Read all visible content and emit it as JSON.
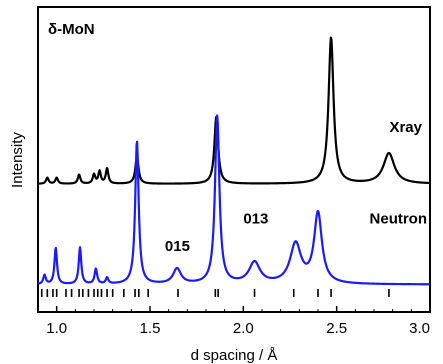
{
  "chart_data": {
    "type": "line",
    "title": "δ-MoN",
    "xlabel": "d spacing / Å",
    "ylabel": "Intensity",
    "xlim": [
      0.9,
      3.0
    ],
    "ylim": [
      0,
      1
    ],
    "x_ticks": [
      1.0,
      1.5,
      2.0,
      2.5,
      3.0
    ],
    "x_tick_labels": [
      "1.0",
      "1.5",
      "2.0",
      "2.5",
      "3.0"
    ],
    "y_ticks_shown": false,
    "grid": false,
    "legend": "none",
    "series": [
      {
        "name": "Xray",
        "color": "#000000",
        "baseline": 0.42,
        "peaks": [
          {
            "x": 0.95,
            "h": 0.02,
            "w": 0.008
          },
          {
            "x": 1.0,
            "h": 0.02,
            "w": 0.008
          },
          {
            "x": 1.12,
            "h": 0.03,
            "w": 0.008
          },
          {
            "x": 1.2,
            "h": 0.03,
            "w": 0.008
          },
          {
            "x": 1.23,
            "h": 0.04,
            "w": 0.008
          },
          {
            "x": 1.27,
            "h": 0.05,
            "w": 0.008
          },
          {
            "x": 1.43,
            "h": 0.09,
            "w": 0.01
          },
          {
            "x": 1.855,
            "h": 0.22,
            "w": 0.012
          },
          {
            "x": 2.47,
            "h": 0.48,
            "w": 0.016
          },
          {
            "x": 2.78,
            "h": 0.1,
            "w": 0.035
          }
        ]
      },
      {
        "name": "Neutron",
        "color": "#1a1aff",
        "baseline": 0.09,
        "peaks": [
          {
            "x": 0.935,
            "h": 0.03,
            "w": 0.008
          },
          {
            "x": 0.995,
            "h": 0.12,
            "w": 0.008
          },
          {
            "x": 1.125,
            "h": 0.12,
            "w": 0.008
          },
          {
            "x": 1.21,
            "h": 0.05,
            "w": 0.008
          },
          {
            "x": 1.27,
            "h": 0.02,
            "w": 0.008
          },
          {
            "x": 1.43,
            "h": 0.47,
            "w": 0.011
          },
          {
            "x": 1.645,
            "h": 0.05,
            "w": 0.025
          },
          {
            "x": 1.86,
            "h": 0.55,
            "w": 0.014
          },
          {
            "x": 2.06,
            "h": 0.07,
            "w": 0.035
          },
          {
            "x": 2.28,
            "h": 0.13,
            "w": 0.035
          },
          {
            "x": 2.4,
            "h": 0.23,
            "w": 0.025
          }
        ]
      }
    ],
    "annotations": [
      {
        "text": "015",
        "x": 1.58,
        "y": 0.2
      },
      {
        "text": "013",
        "x": 2.0,
        "y": 0.29
      }
    ],
    "series_labels": [
      {
        "text": "Xray",
        "x": 2.87,
        "y": 0.59
      },
      {
        "text": "Neutron",
        "x": 2.83,
        "y": 0.29
      }
    ],
    "reflection_ticks": [
      0.92,
      0.95,
      0.98,
      1.0,
      1.05,
      1.08,
      1.12,
      1.14,
      1.17,
      1.2,
      1.22,
      1.24,
      1.27,
      1.3,
      1.36,
      1.42,
      1.44,
      1.49,
      1.65,
      1.85,
      1.865,
      2.06,
      2.27,
      2.4,
      2.47,
      2.78
    ]
  }
}
